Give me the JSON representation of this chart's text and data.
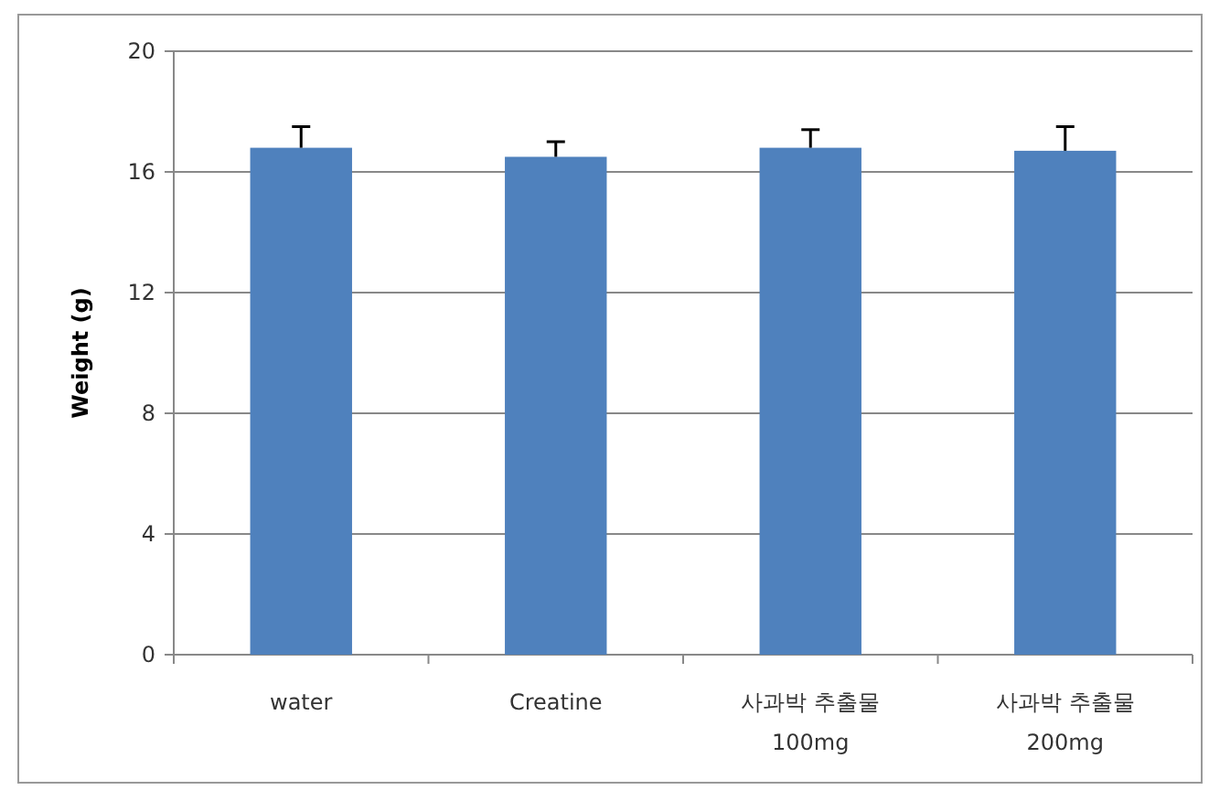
{
  "chart_data": {
    "type": "bar",
    "ylabel": "Weight (g)",
    "categories": [
      "water",
      "Creatine",
      "사과박 추출물\n100mg",
      "사과박 추출물\n200mg"
    ],
    "values": [
      16.8,
      16.5,
      16.8,
      16.7
    ],
    "errors": [
      0.7,
      0.5,
      0.6,
      0.8
    ],
    "color": "#4f81bd",
    "ylim": [
      0,
      20
    ],
    "yticks": [
      0,
      4,
      8,
      12,
      16,
      20
    ],
    "grid": "y"
  }
}
